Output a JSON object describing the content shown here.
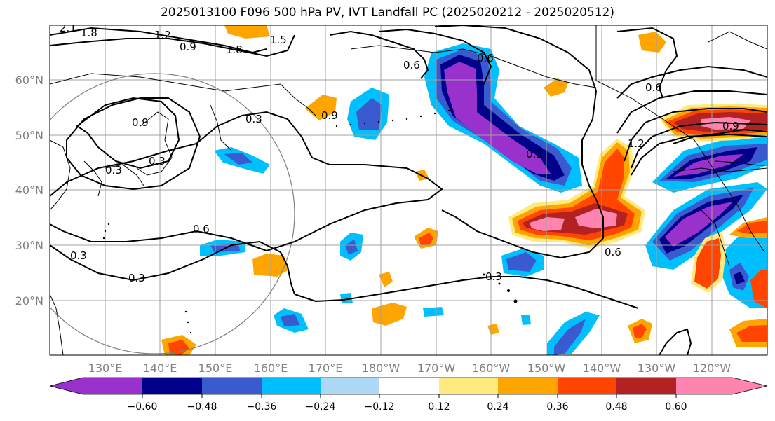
{
  "title": "2025013100 F096 500 hPa PV, IVT Landfall PC (2025020212 - 2025020512)",
  "lat_labels": [
    "60°N",
    "50°N",
    "40°N",
    "30°N",
    "20°N"
  ],
  "lon_labels": [
    "130°E",
    "140°E",
    "150°E",
    "160°E",
    "170°E",
    "180°W",
    "170°W",
    "160°W",
    "150°W",
    "140°W",
    "130°W",
    "120°W"
  ],
  "colorbar": {
    "labels": [
      "−0.60",
      "−0.48",
      "−0.36",
      "−0.24",
      "−0.12",
      "0.12",
      "0.24",
      "0.36",
      "0.48",
      "0.60"
    ],
    "colors": [
      "#9932CC",
      "#00008B",
      "#3A5BD0",
      "#00BFFF",
      "#ADD8F6",
      "#FFFFFF",
      "#FFEA80",
      "#FFA500",
      "#FF4500",
      "#B22222",
      "#FF85B0"
    ]
  },
  "contour_labels": [
    "1.8",
    "2.1",
    "1.2",
    "0.9",
    "1.8",
    "1.5",
    "0.6",
    "0.9",
    "0.3",
    "0.9",
    "0.3",
    "0.3",
    "0.6",
    "0.3",
    "0.3",
    "0.3",
    "0.6",
    "0.6",
    "0.3",
    "1.2",
    "0.9",
    "0.6"
  ]
}
